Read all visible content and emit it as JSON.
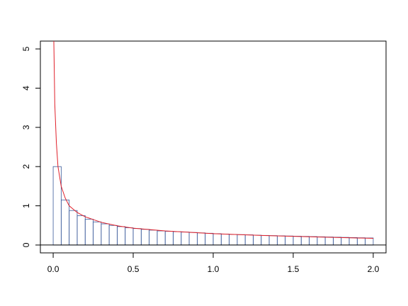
{
  "chart_data": {
    "type": "histogram",
    "bins": [
      0,
      0.05,
      0.1,
      0.15,
      0.2,
      0.25,
      0.3,
      0.35,
      0.4,
      0.45,
      0.5,
      0.55,
      0.6,
      0.65,
      0.7,
      0.75,
      0.8,
      0.85,
      0.9,
      0.95,
      1.0,
      1.05,
      1.1,
      1.15,
      1.2,
      1.25,
      1.3,
      1.35,
      1.4,
      1.45,
      1.5,
      1.55,
      1.6,
      1.65,
      1.7,
      1.75,
      1.8,
      1.85,
      1.9,
      1.95,
      2.0
    ],
    "values": [
      2.0,
      1.15,
      0.88,
      0.75,
      0.66,
      0.59,
      0.54,
      0.5,
      0.47,
      0.44,
      0.42,
      0.4,
      0.38,
      0.36,
      0.35,
      0.34,
      0.33,
      0.32,
      0.31,
      0.3,
      0.29,
      0.28,
      0.27,
      0.265,
      0.26,
      0.25,
      0.245,
      0.24,
      0.235,
      0.23,
      0.225,
      0.22,
      0.215,
      0.21,
      0.205,
      0.2,
      0.195,
      0.19,
      0.185,
      0.18
    ],
    "color": "#3a5a9a",
    "curve": {
      "color": "#e0202a",
      "x": [
        0.004,
        0.01,
        0.02,
        0.03,
        0.05,
        0.075,
        0.1,
        0.15,
        0.2,
        0.3,
        0.4,
        0.5,
        0.7,
        1.0,
        1.3,
        1.6,
        2.0
      ],
      "y": [
        5.2,
        3.6,
        2.6,
        2.0,
        1.5,
        1.2,
        1.0,
        0.83,
        0.72,
        0.58,
        0.49,
        0.43,
        0.36,
        0.29,
        0.245,
        0.21,
        0.17
      ]
    },
    "hline": 0,
    "xlim": [
      -0.08,
      2.08
    ],
    "ylim": [
      -0.2,
      5.2
    ],
    "xticks": [
      {
        "value": 0,
        "label": "0.0"
      },
      0.5,
      {
        "value": 1,
        "label": "1.0"
      },
      1.5,
      {
        "value": 2,
        "label": "2.0"
      }
    ],
    "yticks": [
      0,
      1,
      2,
      3,
      4,
      5
    ]
  }
}
